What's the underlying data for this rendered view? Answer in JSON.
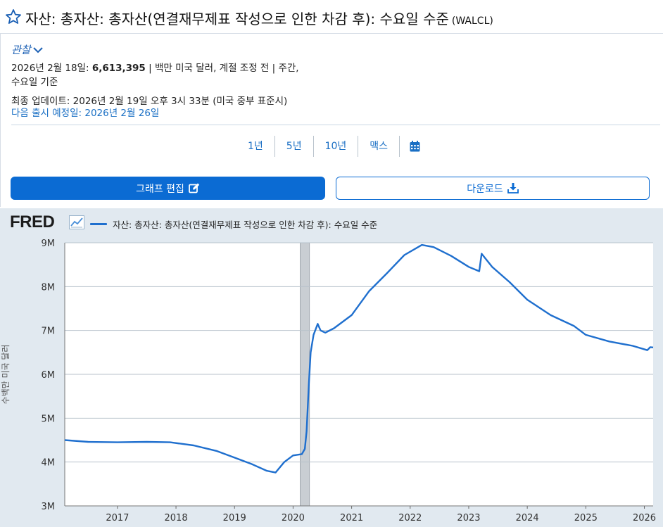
{
  "header": {
    "title": "자산: 총자산: 총자산(연결재무제표 작성으로 인한 차감 후): 수요일 수준",
    "series_code": "(WALCL)"
  },
  "observation": {
    "toggle_label": "관찰",
    "date_label": "2026년 2월 18일:",
    "value": "6,613,395",
    "units": "| 백만 미국 달러, 계절 조정 전 | 주간,",
    "units_line2": "수요일 기준",
    "updated": "최종 업데이트: 2026년 2월 19일 오후 3시 33분 (미국 중부 표준시)",
    "next_release": "다음 출시 예정일: 2026년 2월 26일"
  },
  "range": {
    "options": [
      "1년",
      "5년",
      "10년",
      "맥스"
    ],
    "calendar_icon": "calendar-icon"
  },
  "buttons": {
    "edit_graph": "그래프 편집",
    "download": "다운로드"
  },
  "colors": {
    "primary": "#0b6bd3",
    "series": "#1f6fce",
    "chart_bg": "#e1e9f0",
    "recession": "#c9ced3"
  },
  "chart_data": {
    "type": "line",
    "logo": "FRED",
    "legend": "자산: 총자산: 총자산(연결재무제표 작성으로 인한 차감 후): 수요일 수준",
    "ylabel": "수백만 미국 달러",
    "ylim": [
      3000000,
      9000000
    ],
    "yticks": [
      "3M",
      "4M",
      "5M",
      "6M",
      "7M",
      "8M",
      "9M"
    ],
    "xlim": [
      2016.1,
      2026.15
    ],
    "xticks": [
      "2017",
      "2018",
      "2019",
      "2020",
      "2021",
      "2022",
      "2023",
      "2024",
      "2025",
      "2026"
    ],
    "grid": true,
    "recession": [
      2020.12,
      2020.28
    ],
    "series": [
      {
        "x": [
          2016.1,
          2016.5,
          2017.0,
          2017.5,
          2017.9,
          2018.3,
          2018.7,
          2019.0,
          2019.3,
          2019.55,
          2019.7,
          2019.85,
          2020.0,
          2020.15,
          2020.2,
          2020.23,
          2020.27,
          2020.3,
          2020.35,
          2020.42,
          2020.47,
          2020.55,
          2020.7,
          2021.0,
          2021.3,
          2021.6,
          2021.9,
          2022.2,
          2022.4,
          2022.7,
          2023.0,
          2023.18,
          2023.22,
          2023.4,
          2023.7,
          2024.0,
          2024.4,
          2024.8,
          2025.0,
          2025.4,
          2025.8,
          2026.05,
          2026.1,
          2026.15
        ],
        "y": [
          4500000,
          4460000,
          4450000,
          4460000,
          4450000,
          4380000,
          4250000,
          4100000,
          3950000,
          3800000,
          3760000,
          4000000,
          4150000,
          4180000,
          4300000,
          4700000,
          5800000,
          6500000,
          6900000,
          7150000,
          7000000,
          6950000,
          7050000,
          7350000,
          7900000,
          8300000,
          8720000,
          8950000,
          8900000,
          8700000,
          8450000,
          8350000,
          8750000,
          8450000,
          8100000,
          7700000,
          7350000,
          7100000,
          6900000,
          6750000,
          6650000,
          6550000,
          6620000,
          6613395
        ]
      }
    ]
  }
}
